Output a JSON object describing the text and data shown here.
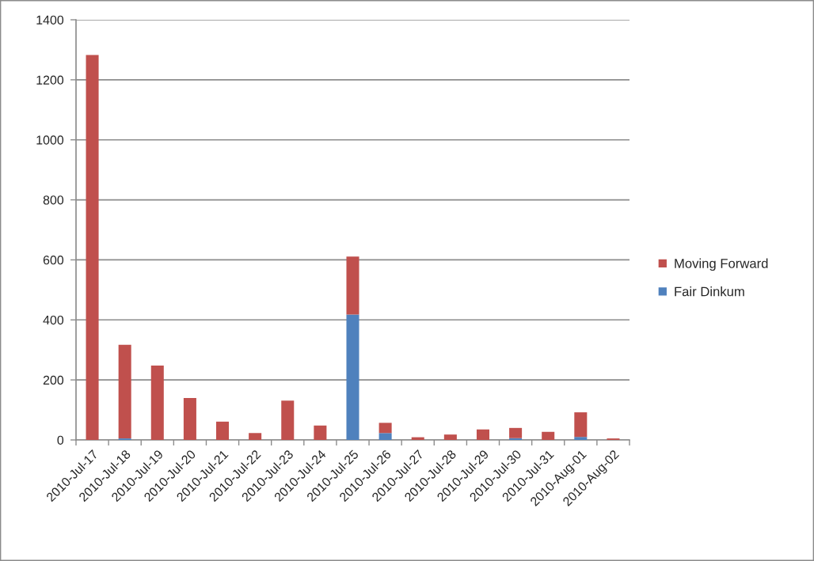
{
  "chart_data": {
    "type": "bar",
    "stacked": true,
    "categories": [
      "2010-Jul-17",
      "2010-Jul-18",
      "2010-Jul-19",
      "2010-Jul-20",
      "2010-Jul-21",
      "2010-Jul-22",
      "2010-Jul-23",
      "2010-Jul-24",
      "2010-Jul-25",
      "2010-Jul-26",
      "2010-Jul-27",
      "2010-Jul-28",
      "2010-Jul-29",
      "2010-Jul-30",
      "2010-Jul-31",
      "2010-Aug-01",
      "2010-Aug-02"
    ],
    "series": [
      {
        "name": "Fair Dinkum",
        "color": "#4f81bd",
        "values": [
          0,
          5,
          0,
          0,
          0,
          0,
          0,
          0,
          418,
          23,
          0,
          0,
          0,
          6,
          0,
          10,
          0
        ]
      },
      {
        "name": "Moving Forward",
        "color": "#c0504d",
        "values": [
          1283,
          312,
          248,
          140,
          61,
          23,
          131,
          48,
          193,
          34,
          9,
          18,
          35,
          34,
          27,
          82,
          5
        ]
      }
    ],
    "ylim": [
      0,
      1400
    ],
    "yticks": [
      0,
      200,
      400,
      600,
      800,
      1000,
      1200,
      1400
    ],
    "grid": "y",
    "legend": "right"
  }
}
